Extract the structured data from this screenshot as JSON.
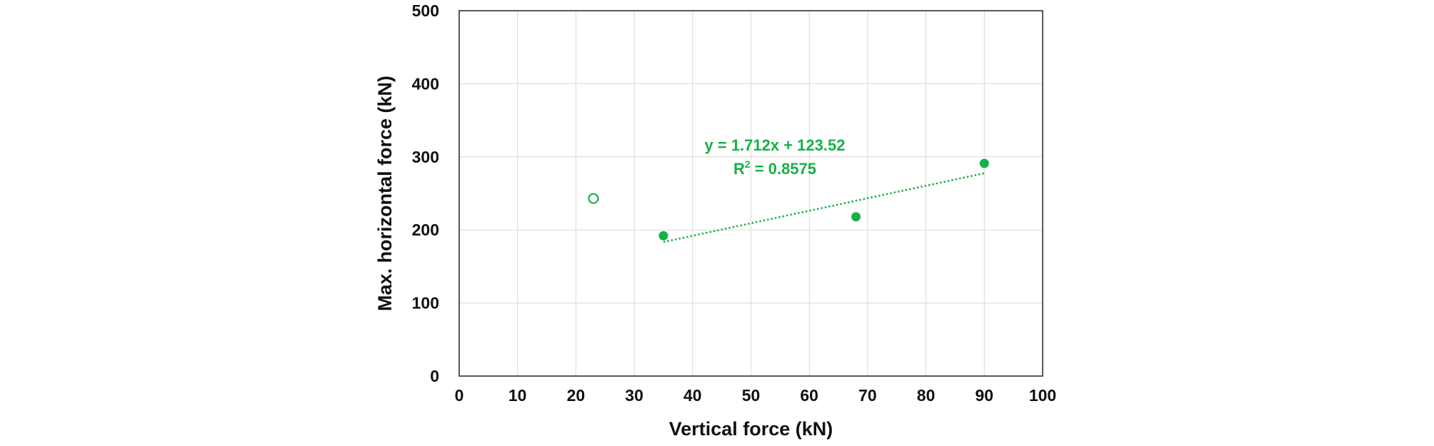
{
  "chart_data": {
    "type": "scatter",
    "xlabel": "Vertical force (kN)",
    "ylabel": "Max. horizontal force (kN)",
    "xlim": [
      0,
      100
    ],
    "ylim": [
      0,
      500
    ],
    "x_ticks": [
      0,
      10,
      20,
      30,
      40,
      50,
      60,
      70,
      80,
      90,
      100
    ],
    "y_ticks": [
      0,
      100,
      200,
      300,
      400,
      500
    ],
    "grid": true,
    "legend": "none",
    "color": "#18b04a",
    "series": [
      {
        "marker": "filled-circle",
        "points": [
          {
            "x": 35,
            "y": 192
          },
          {
            "x": 68,
            "y": 218
          },
          {
            "x": 90,
            "y": 291
          }
        ]
      },
      {
        "marker": "open-circle",
        "points": [
          {
            "x": 23,
            "y": 243
          }
        ]
      }
    ],
    "trendline": {
      "style": "dotted",
      "slope": 1.712,
      "intercept": 123.52,
      "x_range": [
        35,
        90
      ],
      "equation": "y = 1.712x + 123.52",
      "r2_prefix": "R",
      "r2_exp": "2",
      "r2_value": " = 0.8575"
    }
  }
}
